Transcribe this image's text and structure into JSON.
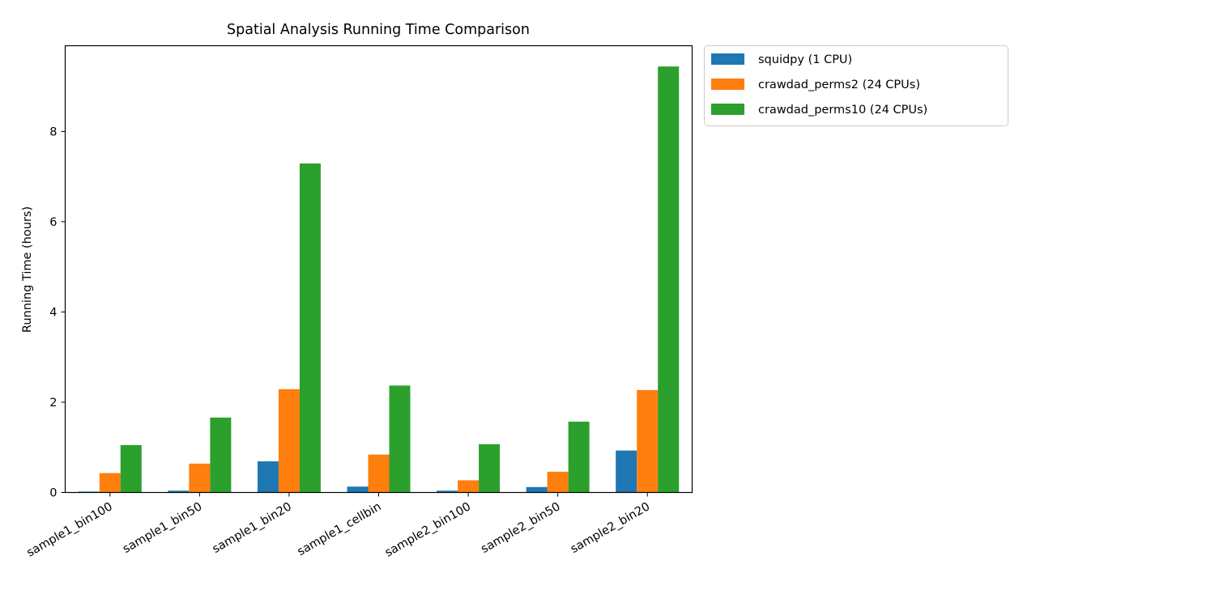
{
  "chart_data": {
    "type": "bar",
    "title": "Spatial Analysis Running Time Comparison",
    "xlabel": "",
    "ylabel": "Running Time (hours)",
    "ylim": [
      0,
      9.9
    ],
    "yticks": [
      0,
      2,
      4,
      6,
      8
    ],
    "categories": [
      "sample1_bin100",
      "sample1_bin50",
      "sample1_bin20",
      "sample1_cellbin",
      "sample2_bin100",
      "sample2_bin50",
      "sample2_bin20"
    ],
    "series": [
      {
        "name": "squidpy (1 CPU)",
        "color": "#1f77b4",
        "values": [
          0.02,
          0.04,
          0.69,
          0.13,
          0.04,
          0.12,
          0.93
        ]
      },
      {
        "name": "crawdad_perms2 (24 CPUs)",
        "color": "#ff7f0e",
        "values": [
          0.43,
          0.64,
          2.29,
          0.84,
          0.27,
          0.46,
          2.27
        ]
      },
      {
        "name": "crawdad_perms10 (24 CPUs)",
        "color": "#2ca02c",
        "values": [
          1.05,
          1.66,
          7.29,
          2.37,
          1.07,
          1.57,
          9.44
        ]
      }
    ],
    "grid": false,
    "legend_position": "outside-top-right"
  }
}
